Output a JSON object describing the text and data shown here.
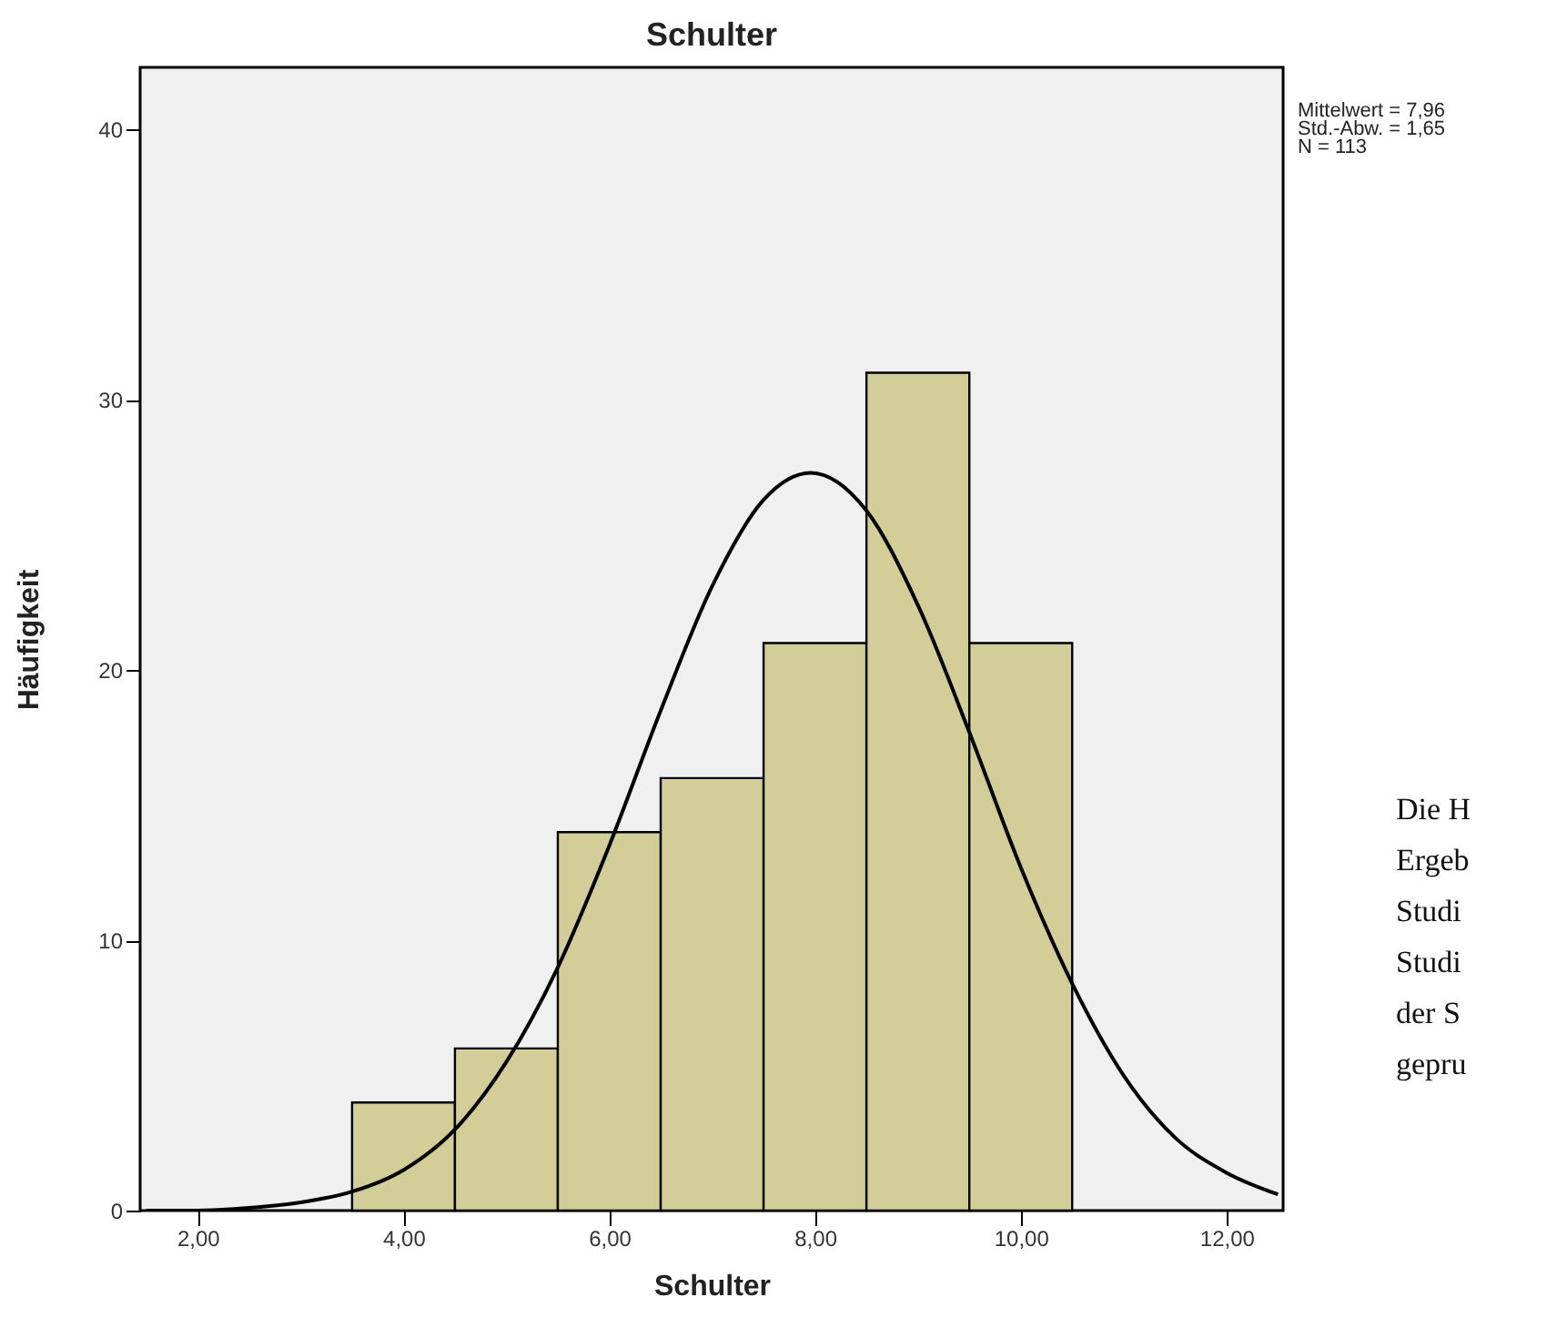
{
  "chart_data": {
    "type": "histogram",
    "title": "Schulter",
    "xlabel": "Schulter",
    "ylabel": "Häufigkeit",
    "bins": [
      3.5,
      4.5,
      5.5,
      6.5,
      7.5,
      8.5,
      9.5,
      10.5
    ],
    "values": [
      4,
      6,
      14,
      16,
      21,
      31,
      21
    ],
    "color": "#d3ce97",
    "series": [
      {
        "type": "line",
        "color": "#000000",
        "x": [
          1.5,
          2,
          2.5,
          3,
          3.5,
          4,
          4.5,
          5,
          5.5,
          6,
          6.5,
          7,
          7.5,
          7.96,
          8.5,
          9,
          9.5,
          10,
          10.5,
          11,
          11.5,
          12,
          12.5
        ],
        "values": [
          0.0,
          0.0,
          0.1,
          0.3,
          0.7,
          1.5,
          3.0,
          5.5,
          9.0,
          13.5,
          18.5,
          23.1,
          26.3,
          27.3,
          25.9,
          22.4,
          17.7,
          12.7,
          8.4,
          5.0,
          2.7,
          1.4,
          0.6
        ]
      }
    ],
    "xlim": [
      1.44,
      12.55
    ],
    "ylim": [
      0,
      42.3
    ],
    "xticks": [
      {
        "value": 2,
        "label": "2,00"
      },
      {
        "value": 4,
        "label": "4,00"
      },
      {
        "value": 6,
        "label": "6,00"
      },
      {
        "value": 8,
        "label": "8,00"
      },
      {
        "value": 10,
        "label": "10,00"
      },
      {
        "value": 12,
        "label": "12,00"
      }
    ],
    "yticks": [
      0,
      10,
      20,
      30,
      40
    ],
    "grid": false,
    "annotations": [
      "Mittelwert = 7,96",
      "Std.-Abw. =  1,65",
      "N = 113",
      "Die H",
      "Ergeb",
      "Studi",
      "Studi",
      "der S",
      "gepru"
    ]
  }
}
